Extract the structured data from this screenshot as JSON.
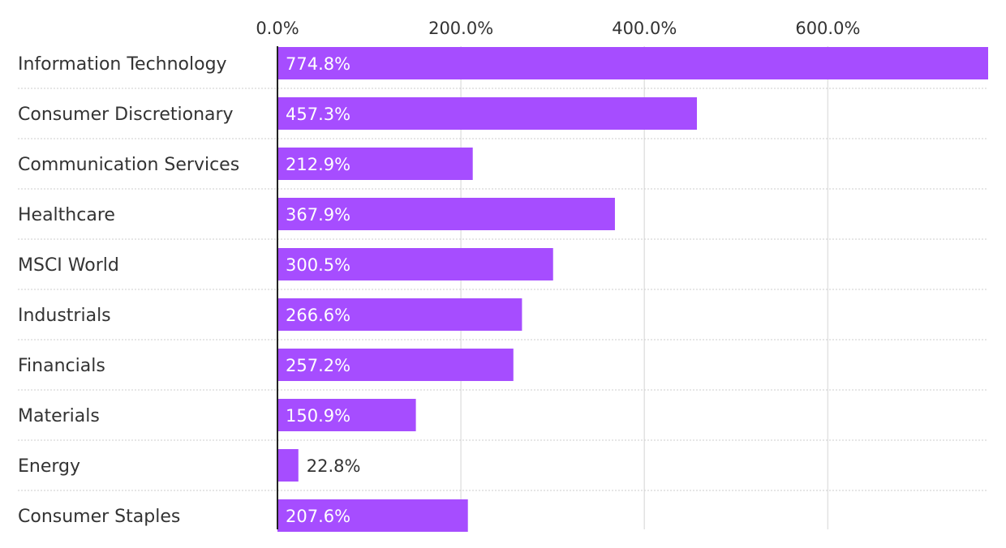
{
  "chart_data": {
    "type": "bar",
    "orientation": "horizontal",
    "categories": [
      "Information Technology",
      "Consumer Discretionary",
      "Communication Services",
      "Healthcare",
      "MSCI World",
      "Industrials",
      "Financials",
      "Materials",
      "Energy",
      "Consumer Staples"
    ],
    "values": [
      774.8,
      457.3,
      212.9,
      367.9,
      300.5,
      266.6,
      257.2,
      150.9,
      22.8,
      207.6
    ],
    "value_labels": [
      "774.8%",
      "457.3%",
      "212.9%",
      "367.9%",
      "300.5%",
      "266.6%",
      "257.2%",
      "150.9%",
      "22.8%",
      "207.6%"
    ],
    "xticks": [
      0,
      200,
      400,
      600
    ],
    "xtick_labels": [
      "0.0%",
      "200.0%",
      "400.0%",
      "600.0%"
    ],
    "xlim": [
      0,
      774.8
    ],
    "xaxis_position": "top",
    "grid": true,
    "bar_color": "#a64dff",
    "label_inside_color": "#ffffff",
    "label_outside_color": "#333333",
    "title": "",
    "xlabel": "",
    "ylabel": ""
  }
}
